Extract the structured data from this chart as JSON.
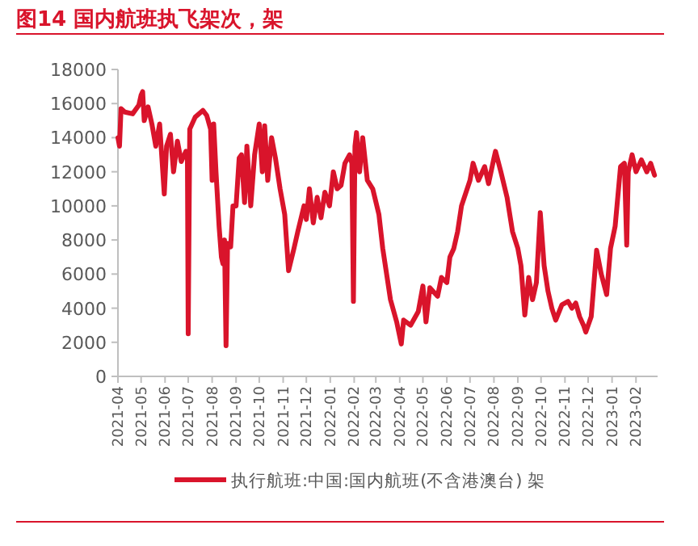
{
  "chart_data": {
    "type": "line",
    "title": "图14  国内航班执飞架次，架",
    "x": [
      "2021-04-01",
      "2021-04-03",
      "2021-04-05",
      "2021-04-10",
      "2021-04-20",
      "2021-04-28",
      "2021-05-01",
      "2021-05-03",
      "2021-05-05",
      "2021-05-10",
      "2021-05-15",
      "2021-05-20",
      "2021-05-25",
      "2021-05-31",
      "2021-06-03",
      "2021-06-08",
      "2021-06-12",
      "2021-06-17",
      "2021-06-22",
      "2021-06-28",
      "2021-06-30",
      "2021-07-01",
      "2021-07-03",
      "2021-07-10",
      "2021-07-20",
      "2021-07-25",
      "2021-07-30",
      "2021-08-01",
      "2021-08-03",
      "2021-08-06",
      "2021-08-10",
      "2021-08-13",
      "2021-08-15",
      "2021-08-17",
      "2021-08-19",
      "2021-08-21",
      "2021-08-25",
      "2021-08-28",
      "2021-09-01",
      "2021-09-05",
      "2021-09-08",
      "2021-09-12",
      "2021-09-15",
      "2021-09-20",
      "2021-09-25",
      "2021-10-01",
      "2021-10-05",
      "2021-10-08",
      "2021-10-12",
      "2021-10-17",
      "2021-10-22",
      "2021-10-28",
      "2021-11-03",
      "2021-11-08",
      "2021-11-15",
      "2021-11-20",
      "2021-11-28",
      "2021-12-01",
      "2021-12-05",
      "2021-12-10",
      "2021-12-15",
      "2021-12-20",
      "2021-12-25",
      "2021-12-31",
      "2022-01-05",
      "2022-01-10",
      "2022-01-15",
      "2022-01-20",
      "2022-01-26",
      "2022-01-29",
      "2022-01-31",
      "2022-02-02",
      "2022-02-04",
      "2022-02-08",
      "2022-02-12",
      "2022-02-18",
      "2022-02-25",
      "2022-03-05",
      "2022-03-10",
      "2022-03-20",
      "2022-03-28",
      "2022-04-03",
      "2022-04-06",
      "2022-04-15",
      "2022-04-25",
      "2022-05-01",
      "2022-05-05",
      "2022-05-10",
      "2022-05-20",
      "2022-05-25",
      "2022-06-01",
      "2022-06-05",
      "2022-06-10",
      "2022-06-15",
      "2022-06-20",
      "2022-07-01",
      "2022-07-05",
      "2022-07-12",
      "2022-07-20",
      "2022-07-25",
      "2022-08-01",
      "2022-08-03",
      "2022-08-10",
      "2022-08-18",
      "2022-08-25",
      "2022-09-01",
      "2022-09-05",
      "2022-09-10",
      "2022-09-15",
      "2022-09-20",
      "2022-09-25",
      "2022-09-30",
      "2022-10-05",
      "2022-10-10",
      "2022-10-15",
      "2022-10-20",
      "2022-10-28",
      "2022-11-05",
      "2022-11-10",
      "2022-11-15",
      "2022-11-20",
      "2022-11-25",
      "2022-11-28",
      "2022-12-05",
      "2022-12-12",
      "2022-12-18",
      "2022-12-25",
      "2022-12-30",
      "2023-01-05",
      "2023-01-12",
      "2023-01-17",
      "2023-01-20",
      "2023-01-22",
      "2023-01-27",
      "2023-02-01",
      "2023-02-08",
      "2023-02-15",
      "2023-02-20",
      "2023-02-25"
    ],
    "series": [
      {
        "name": "执行航班:中国:国内航班(不含港澳台) 架",
        "color": "#d9142b",
        "values": [
          14000,
          13500,
          15700,
          15500,
          15400,
          15900,
          16500,
          16700,
          15000,
          15800,
          14800,
          13500,
          14800,
          10700,
          13500,
          14200,
          12000,
          13800,
          12600,
          13200,
          12800,
          2500,
          14500,
          15200,
          15600,
          15300,
          14500,
          11500,
          14800,
          12000,
          8800,
          7000,
          6600,
          8000,
          1800,
          7800,
          7600,
          10000,
          10000,
          12800,
          13000,
          10200,
          13500,
          10000,
          13000,
          14800,
          12000,
          14700,
          11500,
          14000,
          12800,
          11000,
          9500,
          6200,
          7500,
          8500,
          10000,
          9200,
          11000,
          9000,
          10500,
          9300,
          10800,
          10000,
          12000,
          11000,
          11200,
          12500,
          13000,
          12500,
          4400,
          13500,
          14300,
          12000,
          14000,
          11500,
          11000,
          9500,
          7500,
          4500,
          3200,
          1900,
          3300,
          3000,
          3800,
          5300,
          3200,
          5200,
          4700,
          5800,
          5500,
          7000,
          7500,
          8500,
          10000,
          11500,
          12500,
          11500,
          12300,
          11300,
          12800,
          13200,
          12000,
          10500,
          8500,
          7500,
          6500,
          3600,
          5800,
          4500,
          5500,
          9600,
          6500,
          5000,
          4000,
          3300,
          4200,
          4400,
          4000,
          4300,
          3500,
          3000,
          2600,
          3500,
          7400,
          6000,
          4800,
          7500,
          8800,
          12300,
          12500,
          7700,
          12000,
          13000,
          12000,
          12700,
          12000,
          12500,
          11800
        ]
      }
    ],
    "xlim": [
      "2021-04-01",
      "2023-03-01"
    ],
    "xticks": [
      "2021-04",
      "2021-05",
      "2021-06",
      "2021-07",
      "2021-08",
      "2021-09",
      "2021-10",
      "2021-11",
      "2021-12",
      "2022-01",
      "2022-02",
      "2022-03",
      "2022-04",
      "2022-05",
      "2022-06",
      "2022-07",
      "2022-08",
      "2022-09",
      "2022-10",
      "2022-11",
      "2022-12",
      "2023-01",
      "2023-02"
    ],
    "ylim": [
      0,
      18000
    ],
    "yticks": [
      0,
      2000,
      4000,
      6000,
      8000,
      10000,
      12000,
      14000,
      16000,
      18000
    ],
    "legend": "bottom",
    "grid": false
  }
}
